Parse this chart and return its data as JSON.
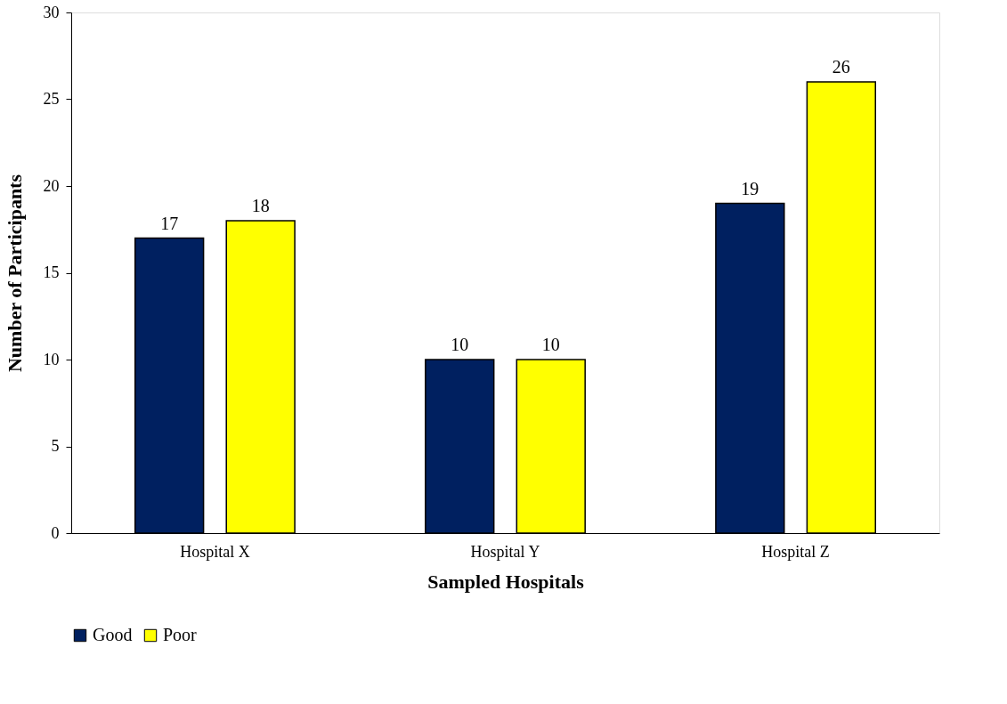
{
  "chart_data": {
    "type": "bar",
    "xlabel": "Sampled Hospitals",
    "ylabel": "Number of Participants",
    "categories": [
      "Hospital X",
      "Hospital Y",
      "Hospital Z"
    ],
    "series": [
      {
        "name": "Good",
        "color": "#002060",
        "values": [
          17,
          10,
          19
        ]
      },
      {
        "name": "Poor",
        "color": "#ffff00",
        "values": [
          18,
          10,
          26
        ]
      }
    ],
    "ylim": [
      0,
      30
    ],
    "yticks": [
      0,
      5,
      10,
      15,
      20,
      25,
      30
    ],
    "grid": false,
    "legend": "bottom",
    "data_labels": true
  }
}
